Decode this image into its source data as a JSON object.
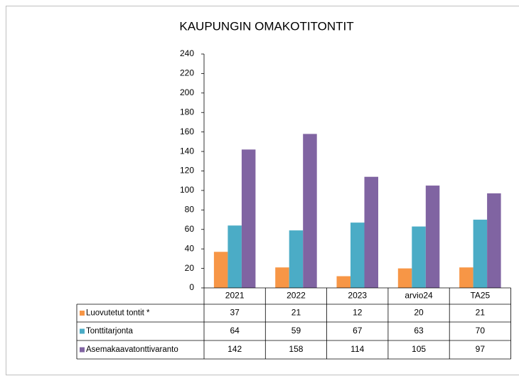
{
  "chart_data": {
    "type": "bar",
    "title": "KAUPUNGIN  OMAKOTITONTIT",
    "categories": [
      "2021",
      "2022",
      "2023",
      "arvio24",
      "TA25"
    ],
    "series": [
      {
        "name": "Luovutetut tontit  *",
        "color": "#f79646",
        "values": [
          37,
          21,
          12,
          20,
          21
        ]
      },
      {
        "name": "Tonttitarjonta",
        "color": "#4bacc6",
        "values": [
          64,
          59,
          67,
          63,
          70
        ]
      },
      {
        "name": "Asemakaavatonttivaranto",
        "color": "#8064a2",
        "values": [
          142,
          158,
          114,
          105,
          97
        ]
      }
    ],
    "ylim": [
      0,
      240
    ],
    "yticks": [
      0,
      20,
      40,
      60,
      80,
      100,
      120,
      140,
      160,
      180,
      200,
      220,
      240
    ]
  }
}
